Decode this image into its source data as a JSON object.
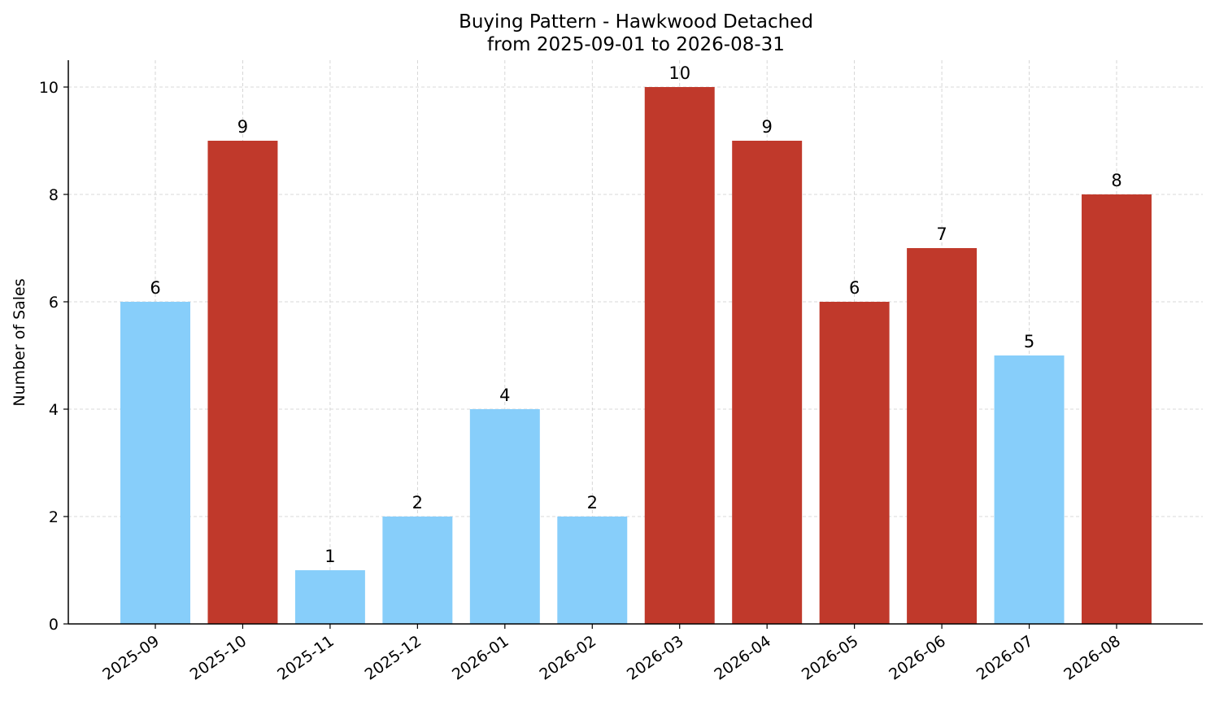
{
  "chart_data": {
    "type": "bar",
    "title": "Buying Pattern - Hawkwood Detached",
    "subtitle": "from 2025-09-01 to 2026-08-31",
    "xlabel": "",
    "ylabel": "Number of Sales",
    "categories": [
      "2025-09",
      "2025-10",
      "2025-11",
      "2025-12",
      "2026-01",
      "2026-02",
      "2026-03",
      "2026-04",
      "2026-05",
      "2026-06",
      "2026-07",
      "2026-08"
    ],
    "values": [
      6,
      9,
      1,
      2,
      4,
      2,
      10,
      9,
      6,
      7,
      5,
      8
    ],
    "bar_colors": [
      "#87CEFA",
      "#C0392B",
      "#87CEFA",
      "#87CEFA",
      "#87CEFA",
      "#87CEFA",
      "#C0392B",
      "#C0392B",
      "#C0392B",
      "#C0392B",
      "#87CEFA",
      "#C0392B"
    ],
    "ylim": [
      0,
      10.5
    ],
    "yticks": [
      0,
      2,
      4,
      6,
      8,
      10
    ],
    "grid": true,
    "legend": "none"
  }
}
